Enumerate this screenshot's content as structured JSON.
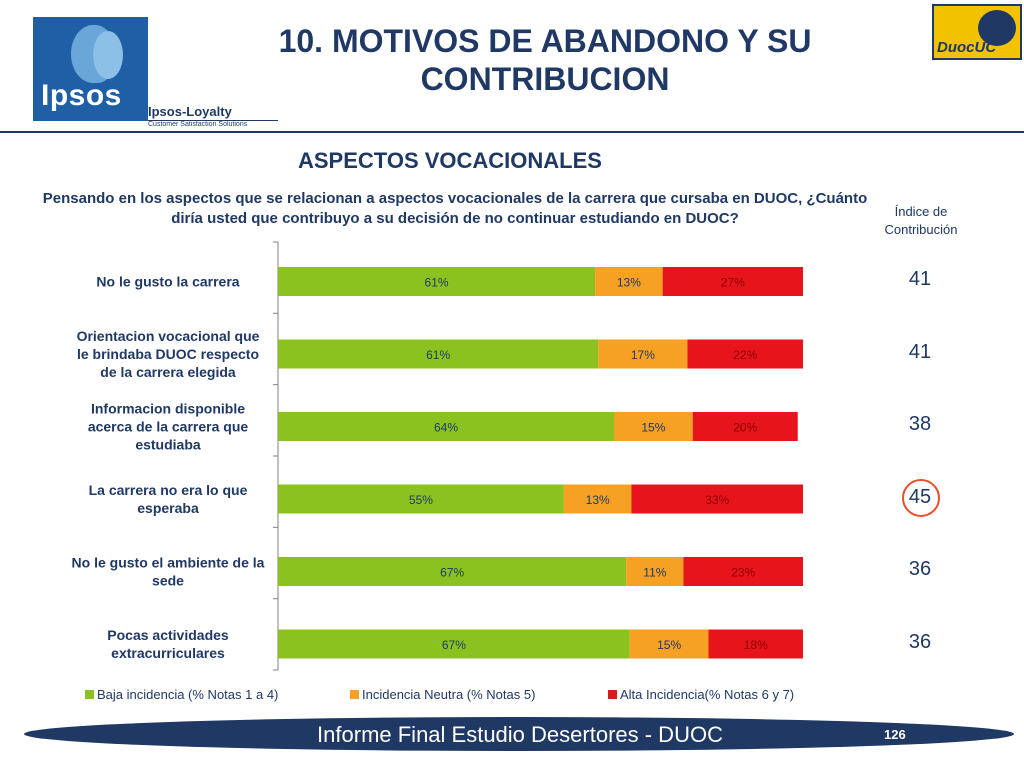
{
  "header": {
    "title_line1": "10. MOTIVOS DE ABANDONO Y SU",
    "title_line2": "CONTRIBUCION",
    "logo_ipsos": "Ipsos",
    "logo_loyalty_name": "Ipsos-Loyalty",
    "logo_loyalty_sub": "Customer Satisfaction Solutions",
    "logo_duoc": "DuocUC"
  },
  "subtitle": "ASPECTOS VOCACIONALES",
  "question": "Pensando en los aspectos que se relacionan a aspectos vocacionales de la carrera que cursaba en DUOC, ¿Cuánto diría usted que contribuyo a su decisión de no continuar estudiando en DUOC?",
  "index_header_line1": "Índice de",
  "index_header_line2": "Contribución",
  "index_values": [
    "41",
    "41",
    "38",
    "45",
    "36",
    "36"
  ],
  "highlighted_index": 3,
  "colors": {
    "low": "#8cc21f",
    "neutral": "#f7a124",
    "high": "#e8141c",
    "text": "#1f3864",
    "highlight": "#e8502a"
  },
  "chart_data": {
    "type": "bar",
    "orientation": "horizontal",
    "stacked": true,
    "categories": [
      [
        "No le gusto la carrera"
      ],
      [
        "Orientacion vocacional que",
        "le brindaba DUOC respecto",
        "de la carrera elegida"
      ],
      [
        "Informacion disponible",
        "acerca de la carrera que",
        "estudiaba"
      ],
      [
        "La carrera no era lo que",
        "esperaba"
      ],
      [
        "No le gusto el ambiente de la",
        "sede"
      ],
      [
        "Pocas actividades",
        "extracurriculares"
      ]
    ],
    "series": [
      {
        "name": "Baja incidencia (% Notas 1 a 4)",
        "values": [
          61,
          61,
          64,
          55,
          67,
          67
        ]
      },
      {
        "name": "Incidencia Neutra (% Notas 5)",
        "values": [
          13,
          17,
          15,
          13,
          11,
          15
        ]
      },
      {
        "name": "Alta Incidencia(% Notas 6 y 7)",
        "values": [
          27,
          22,
          20,
          33,
          23,
          18
        ]
      }
    ],
    "value_suffix": "%",
    "legend": "bottom"
  },
  "footer": {
    "text": "Informe Final Estudio Desertores - DUOC",
    "page": "126"
  }
}
